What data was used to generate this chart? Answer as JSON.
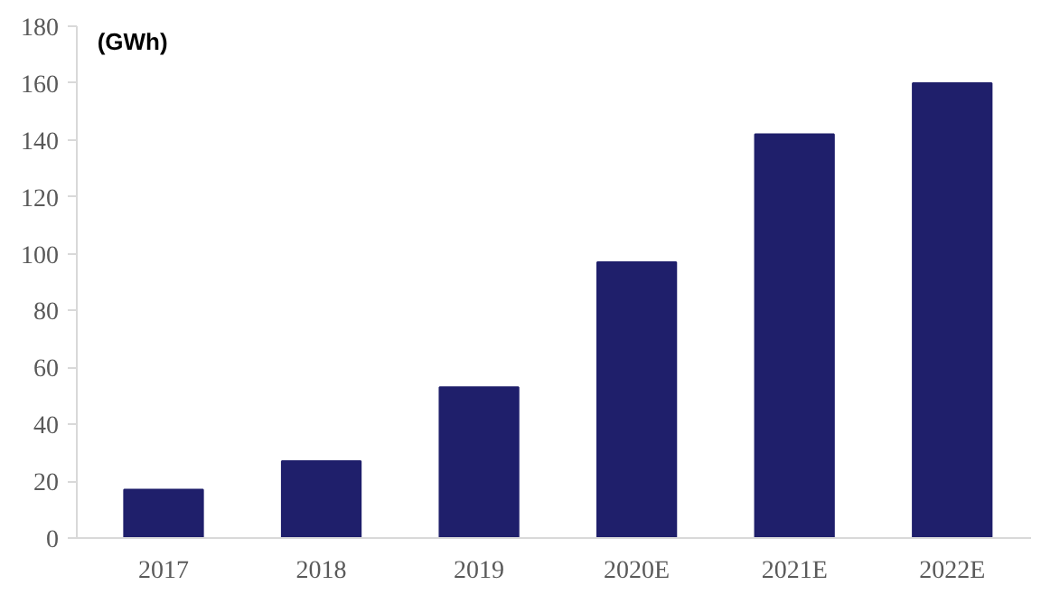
{
  "chart_data": {
    "type": "bar",
    "ylabel": "(GWh)",
    "categories": [
      "2017",
      "2018",
      "2019",
      "2020E",
      "2021E",
      "2022E"
    ],
    "values": [
      17,
      27,
      53,
      97,
      142,
      160
    ],
    "color": "#1f1f6b",
    "ylim": [
      0,
      180
    ],
    "yticks": [
      0,
      20,
      40,
      60,
      80,
      100,
      120,
      140,
      160,
      180
    ],
    "grid": false
  }
}
